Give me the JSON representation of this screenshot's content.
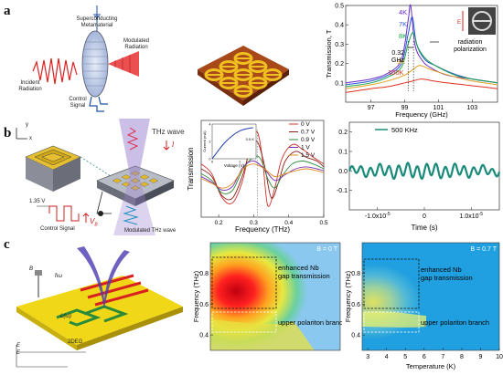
{
  "rows": [
    {
      "letter": "a"
    },
    {
      "letter": "b"
    },
    {
      "letter": "c"
    }
  ],
  "panel_a1": {
    "labels": {
      "metamaterial": "Superconducting Metamaterial",
      "incident": "Incident Radiation",
      "modulated": "Modulated Radiation",
      "control": "Control Signal"
    }
  },
  "panel_b1": {
    "labels": {
      "thz_wave": "THz wave",
      "voltage": "1.35 V",
      "control": "Control Signal",
      "modulated": "Modulated THz wave",
      "vb": "V",
      "vb_sub": "B",
      "y": "y",
      "x": "x",
      "i": "I"
    }
  },
  "panel_c1": {
    "labels": {
      "hw": "ħω",
      "lrc": "L(ω)",
      "twodeg": "2DEG",
      "x": "x",
      "y": "y",
      "bz": "B",
      "e1": "E",
      "e2": "E"
    }
  },
  "chart_data": [
    {
      "id": "a3",
      "type": "line",
      "ylabel": "Transmission, T",
      "xlabel": "Frequency (GHz)",
      "xlim": [
        95.5,
        104.5
      ],
      "ylim": [
        0,
        0.5
      ],
      "xticks": [
        97,
        99,
        101,
        103
      ],
      "yticks": [
        0.1,
        0.2,
        0.3,
        0.4,
        0.5
      ],
      "series": [
        {
          "name": "4K",
          "color": "#6a2cc8",
          "x": [
            95.5,
            97,
            98,
            98.8,
            99.2,
            99.35,
            99.6,
            100,
            100.5,
            101.5,
            103,
            104.5
          ],
          "y": [
            0.1,
            0.12,
            0.15,
            0.22,
            0.42,
            0.5,
            0.3,
            0.22,
            0.18,
            0.14,
            0.12,
            0.1
          ]
        },
        {
          "name": "7K",
          "color": "#2b55d9",
          "x": [
            95.5,
            97,
            98,
            98.8,
            99.2,
            99.45,
            99.7,
            100.2,
            100.8,
            101.8,
            103,
            104.5
          ],
          "y": [
            0.09,
            0.11,
            0.14,
            0.2,
            0.35,
            0.44,
            0.3,
            0.22,
            0.19,
            0.15,
            0.12,
            0.1
          ]
        },
        {
          "name": "8K",
          "color": "#18a24a",
          "x": [
            95.5,
            97,
            98,
            98.8,
            99.2,
            99.5,
            99.8,
            100.3,
            101,
            102,
            103,
            104.5
          ],
          "y": [
            0.08,
            0.1,
            0.13,
            0.18,
            0.3,
            0.36,
            0.28,
            0.22,
            0.18,
            0.14,
            0.12,
            0.1
          ]
        },
        {
          "name": "9K",
          "color": "#e0a020",
          "x": [
            95.5,
            97,
            98,
            99,
            99.5,
            99.9,
            100.5,
            101.2,
            102,
            103,
            104.5
          ],
          "y": [
            0.07,
            0.09,
            0.11,
            0.14,
            0.17,
            0.19,
            0.17,
            0.15,
            0.13,
            0.11,
            0.09
          ]
        },
        {
          "name": "100K",
          "color": "#e03020",
          "x": [
            95.5,
            97,
            98,
            99,
            99.5,
            100,
            100.7,
            101.5,
            102.5,
            103.5,
            104.5
          ],
          "y": [
            0.05,
            0.07,
            0.08,
            0.1,
            0.11,
            0.12,
            0.11,
            0.1,
            0.09,
            0.08,
            0.07
          ]
        }
      ],
      "annotations": {
        "gap": "0.32 GHz",
        "polarization": "radiation polarization",
        "e": "E"
      }
    },
    {
      "id": "b2",
      "type": "line",
      "ylabel": "Transmission",
      "xlabel": "Frequency (THz)",
      "xlim": [
        0.15,
        0.5
      ],
      "ylim": [
        0,
        1
      ],
      "xticks": [
        0.2,
        0.3,
        0.4,
        0.5
      ],
      "series": [
        {
          "name": "0 V",
          "color": "#d0302a",
          "x": [
            0.15,
            0.18,
            0.21,
            0.24,
            0.27,
            0.29,
            0.31,
            0.325,
            0.34,
            0.36,
            0.38,
            0.41,
            0.44,
            0.47,
            0.5
          ],
          "y": [
            0.55,
            0.45,
            0.2,
            0.15,
            0.4,
            0.75,
            0.88,
            0.6,
            0.12,
            0.3,
            0.6,
            0.75,
            0.7,
            0.62,
            0.55
          ]
        },
        {
          "name": "0.7 V",
          "color": "#8a1f1a",
          "x": [
            0.15,
            0.18,
            0.21,
            0.24,
            0.27,
            0.29,
            0.31,
            0.33,
            0.35,
            0.37,
            0.39,
            0.42,
            0.45,
            0.48,
            0.5
          ],
          "y": [
            0.5,
            0.42,
            0.22,
            0.2,
            0.45,
            0.7,
            0.78,
            0.55,
            0.2,
            0.35,
            0.58,
            0.68,
            0.62,
            0.58,
            0.52
          ]
        },
        {
          "name": "0.9 V",
          "color": "#2e8b3a",
          "x": [
            0.15,
            0.18,
            0.21,
            0.24,
            0.27,
            0.3,
            0.32,
            0.34,
            0.36,
            0.38,
            0.41,
            0.44,
            0.47,
            0.5
          ],
          "y": [
            0.45,
            0.38,
            0.25,
            0.28,
            0.5,
            0.62,
            0.6,
            0.4,
            0.3,
            0.42,
            0.55,
            0.58,
            0.55,
            0.5
          ]
        },
        {
          "name": "1 V",
          "color": "#7a2fb0",
          "x": [
            0.15,
            0.18,
            0.21,
            0.24,
            0.27,
            0.3,
            0.33,
            0.36,
            0.39,
            0.42,
            0.45,
            0.48,
            0.5
          ],
          "y": [
            0.42,
            0.36,
            0.28,
            0.32,
            0.52,
            0.58,
            0.5,
            0.38,
            0.44,
            0.5,
            0.52,
            0.5,
            0.48
          ]
        },
        {
          "name": "1.5 V",
          "color": "#e08a20",
          "x": [
            0.15,
            0.18,
            0.21,
            0.24,
            0.27,
            0.3,
            0.33,
            0.36,
            0.39,
            0.42,
            0.45,
            0.48,
            0.5
          ],
          "y": [
            0.4,
            0.35,
            0.3,
            0.35,
            0.5,
            0.55,
            0.5,
            0.42,
            0.45,
            0.48,
            0.5,
            0.48,
            0.46
          ]
        }
      ],
      "inset": {
        "xlabel": "Voltage (V)",
        "ylabel": "Current (mA)",
        "x": [
          0,
          0.5,
          1,
          1.5
        ],
        "y": [
          0,
          2,
          3.2,
          3.6
        ],
        "mark": "0.5 K",
        "yticks": [
          0,
          2,
          4
        ],
        "xticks": [
          0,
          1
        ]
      }
    },
    {
      "id": "b3",
      "type": "line",
      "xlabel": "Time (s)",
      "legend": "500 KHz",
      "color": "#1a8a7a",
      "xlim": [
        -1.6e-05,
        1.6e-05
      ],
      "ylim": [
        -0.2,
        0.25
      ],
      "yticks": [
        -0.1,
        0.0,
        0.1,
        0.2
      ],
      "ytick_labels": [
        "-0.1",
        "0.0",
        "0.1",
        "0.2"
      ],
      "xtick_labels": [
        "-1.0x10",
        "0",
        "1.0x10"
      ],
      "xtick_exp": "-5",
      "xtick_values": [
        -1e-05,
        0,
        1e-05
      ],
      "cycles": 16,
      "amplitude": 0.03
    },
    {
      "id": "c2",
      "type": "heatmap",
      "ylabel": "Frequency (THz)",
      "yticks": [
        0.4,
        0.6,
        0.8
      ],
      "ylim": [
        0.3,
        1.0
      ],
      "field": "B = 0 T",
      "box1": "enhanced Nb gap transmission",
      "box2": "upper polariton branch"
    },
    {
      "id": "c3",
      "type": "heatmap",
      "ylabel": "Frequency (THz)",
      "xlabel": "Temperature (K)",
      "yticks": [
        0.4,
        0.6,
        0.8
      ],
      "xticks": [
        3,
        4,
        5,
        6,
        7,
        8,
        9,
        10
      ],
      "xlim": [
        2.7,
        10
      ],
      "ylim": [
        0.3,
        1.0
      ],
      "field": "B = 0.7 T",
      "box1": "enhanced Nb gap transmission",
      "box2": "upper polariton branch"
    }
  ]
}
